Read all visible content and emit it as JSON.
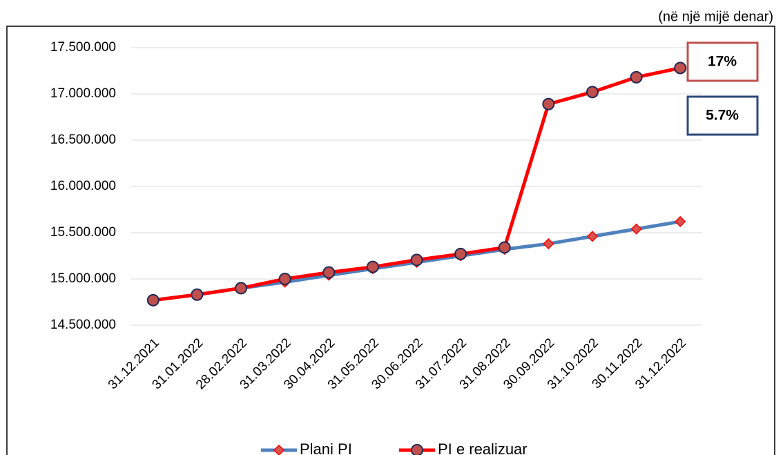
{
  "chart_data": {
    "type": "line",
    "subtitle": "(në një mijë denar)",
    "categories": [
      "31.12.2021",
      "31.01.2022",
      "28.02.2022",
      "31.03.2022",
      "30.04.2022",
      "31.05.2022",
      "30.06.2022",
      "31.07.2022",
      "31.08.2022",
      "30.09.2022",
      "31.10.2022",
      "30.11.2022",
      "31.12.2022"
    ],
    "series": [
      {
        "name": "Plani PI",
        "color": "#4f81bd",
        "marker": "diamond",
        "marker_fill": "#d9534f",
        "marker_edge": "#ff0000",
        "values": [
          14770000,
          14830000,
          14900000,
          14965000,
          15040000,
          15110000,
          15180000,
          15250000,
          15320000,
          15380000,
          15460000,
          15540000,
          15620000
        ]
      },
      {
        "name": "PI e realizuar",
        "color": "#ff0000",
        "marker": "circle",
        "marker_fill": "#c0504d",
        "marker_edge": "#1f2a55",
        "values": [
          14770000,
          14830000,
          14900000,
          15000000,
          15070000,
          15130000,
          15205000,
          15270000,
          15340000,
          16890000,
          17020000,
          17180000,
          17280000
        ]
      }
    ],
    "ylim": [
      14500000,
      17500000
    ],
    "yticks": [
      {
        "value": 14500000,
        "label": "14.500.000"
      },
      {
        "value": 15000000,
        "label": "15.000.000"
      },
      {
        "value": 15500000,
        "label": "15.500.000"
      },
      {
        "value": 16000000,
        "label": "16.000.000"
      },
      {
        "value": 16500000,
        "label": "16.500.000"
      },
      {
        "value": 17000000,
        "label": "17.000.000"
      },
      {
        "value": 17500000,
        "label": "17.500.000"
      }
    ],
    "grid": true,
    "legend": "bottom",
    "annotations": [
      {
        "text": "17%",
        "color": "#c0504d"
      },
      {
        "text": "5.7%",
        "color": "#2e4a7a"
      }
    ]
  }
}
